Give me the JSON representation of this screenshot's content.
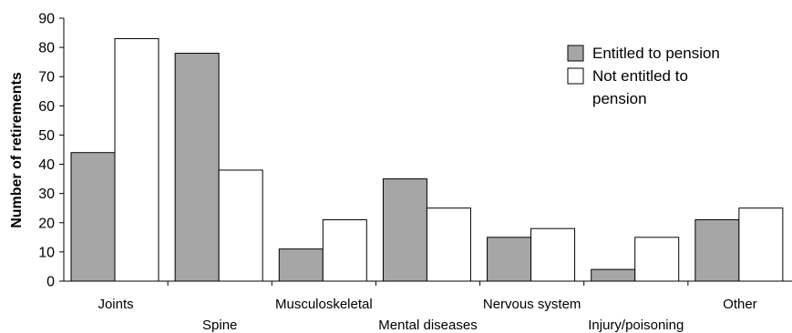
{
  "chart_data": {
    "type": "bar",
    "categories": [
      "Joints",
      "Spine",
      "Musculoskeletal",
      "Mental diseases",
      "Nervous system",
      "Injury/poisoning",
      "Other"
    ],
    "series": [
      {
        "name": "Entitled to pension",
        "values": [
          44,
          78,
          11,
          35,
          15,
          4,
          21
        ],
        "color": "#a6a6a6"
      },
      {
        "name": "Not entitled to pension",
        "values": [
          83,
          38,
          21,
          25,
          18,
          15,
          25
        ],
        "color": "#ffffff"
      }
    ],
    "ylabel": "Number of retirements",
    "xlabel": "",
    "ylim": [
      0,
      90
    ],
    "yticks": [
      0,
      10,
      20,
      30,
      40,
      50,
      60,
      70,
      80,
      90
    ],
    "grid": false,
    "legend_position": "top-right",
    "legend_lines": [
      [
        "Entitled to pension"
      ],
      [
        "Not entitled to",
        "pension"
      ]
    ]
  }
}
